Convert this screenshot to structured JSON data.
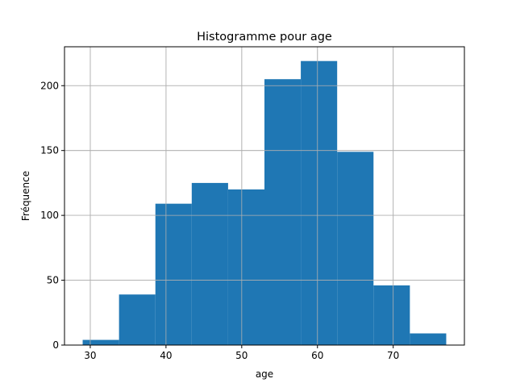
{
  "chart_data": {
    "type": "bar",
    "title": "Histogramme pour age",
    "xlabel": "age",
    "ylabel": "Fréquence",
    "bins": [
      {
        "x0": 29.0,
        "x1": 33.8,
        "count": 4
      },
      {
        "x0": 33.8,
        "x1": 38.6,
        "count": 39
      },
      {
        "x0": 38.6,
        "x1": 43.4,
        "count": 109
      },
      {
        "x0": 43.4,
        "x1": 48.2,
        "count": 125
      },
      {
        "x0": 48.2,
        "x1": 53.0,
        "count": 120
      },
      {
        "x0": 53.0,
        "x1": 57.8,
        "count": 205
      },
      {
        "x0": 57.8,
        "x1": 62.6,
        "count": 219
      },
      {
        "x0": 62.6,
        "x1": 67.4,
        "count": 149
      },
      {
        "x0": 67.4,
        "x1": 72.2,
        "count": 46
      },
      {
        "x0": 72.2,
        "x1": 77.0,
        "count": 9
      }
    ],
    "xlim": [
      26.6,
      79.4
    ],
    "ylim": [
      0,
      230
    ],
    "xticks": [
      30,
      40,
      50,
      60,
      70
    ],
    "yticks": [
      0,
      50,
      100,
      150,
      200
    ],
    "grid": true,
    "bar_color": "#1f77b4",
    "grid_color": "#b0b0b0"
  }
}
